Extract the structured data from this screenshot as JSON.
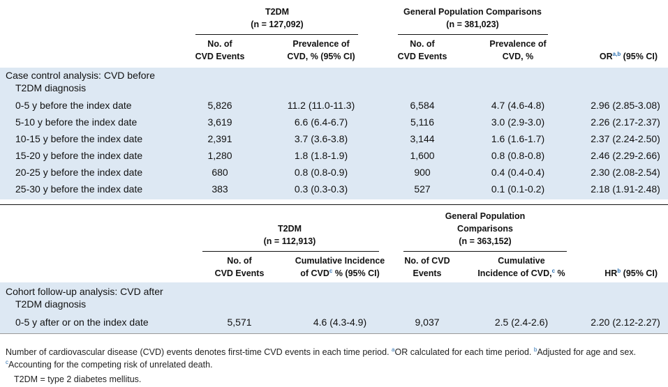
{
  "table1": {
    "groups": [
      {
        "lines": [
          "T2DM",
          "(n = 127,092)"
        ]
      },
      {
        "lines": [
          "General Population Comparisons",
          "(n = 381,023)"
        ]
      }
    ],
    "columns": [
      {
        "lines": [
          [
            "No. of"
          ],
          [
            "CVD Events"
          ]
        ]
      },
      {
        "lines": [
          [
            "Prevalence of"
          ],
          [
            "CVD, % (95% CI)"
          ]
        ]
      },
      {
        "lines": [
          [
            "No. of"
          ],
          [
            "CVD Events"
          ]
        ]
      },
      {
        "lines": [
          [
            "Prevalence of"
          ],
          [
            "CVD, %"
          ]
        ]
      },
      {
        "lines": [
          [
            "OR",
            {
              "sup": "a,b"
            },
            " (95% CI)"
          ]
        ]
      }
    ],
    "section": [
      "Case control analysis: CVD before",
      "T2DM diagnosis"
    ],
    "rows": [
      [
        "0-5 y before the index date",
        "5,826",
        "11.2 (11.0-11.3)",
        "6,584",
        "4.7 (4.6-4.8)",
        "2.96 (2.85-3.08)"
      ],
      [
        "5-10 y before the index date",
        "3,619",
        "6.6 (6.4-6.7)",
        "5,116",
        "3.0 (2.9-3.0)",
        "2.26 (2.17-2.37)"
      ],
      [
        "10-15 y before the index date",
        "2,391",
        "3.7 (3.6-3.8)",
        "3,144",
        "1.6 (1.6-1.7)",
        "2.37 (2.24-2.50)"
      ],
      [
        "15-20 y before the index date",
        "1,280",
        "1.8 (1.8-1.9)",
        "1,600",
        "0.8 (0.8-0.8)",
        "2.46 (2.29-2.66)"
      ],
      [
        "20-25 y before the index date",
        "680",
        "0.8 (0.8-0.9)",
        "900",
        "0.4 (0.4-0.4)",
        "2.30 (2.08-2.54)"
      ],
      [
        "25-30 y before the index date",
        "383",
        "0.3 (0.3-0.3)",
        "527",
        "0.1 (0.1-0.2)",
        "2.18 (1.91-2.48)"
      ]
    ]
  },
  "table2": {
    "groups": [
      {
        "lines": [
          "T2DM",
          "(n = 112,913)"
        ]
      },
      {
        "lines": [
          "General Population",
          "Comparisons",
          "(n = 363,152)"
        ]
      }
    ],
    "columns": [
      {
        "lines": [
          [
            "No. of"
          ],
          [
            "CVD Events"
          ]
        ]
      },
      {
        "lines": [
          [
            "Cumulative Incidence"
          ],
          [
            "of CVD",
            {
              "sup": "c"
            },
            " % (95% CI)"
          ]
        ]
      },
      {
        "lines": [
          [
            "No. of CVD"
          ],
          [
            "Events"
          ]
        ]
      },
      {
        "lines": [
          [
            "Cumulative"
          ],
          [
            "Incidence of CVD,",
            {
              "sup": "c"
            },
            " %"
          ]
        ]
      },
      {
        "lines": [
          [
            "HR",
            {
              "sup": "b"
            },
            " (95% CI)"
          ]
        ]
      }
    ],
    "section": [
      "Cohort follow-up analysis: CVD after",
      "T2DM diagnosis"
    ],
    "rows": [
      [
        "0-5 y after or on the index date",
        "5,571",
        "4.6 (4.3-4.9)",
        "9,037",
        "2.5 (2.4-2.6)",
        "2.20 (2.12-2.27)"
      ]
    ]
  },
  "footnote": {
    "paragraph": [
      "Number of cardiovascular disease (CVD) events denotes first-time CVD events in each time period. ",
      {
        "sup": "a"
      },
      "OR calculated for each time period. ",
      {
        "sup": "b"
      },
      "Adjusted for age and sex. ",
      {
        "sup": "c"
      },
      "Accounting for the competing risk of unrelated death."
    ],
    "abbreviation": "T2DM = type 2 diabetes mellitus."
  }
}
